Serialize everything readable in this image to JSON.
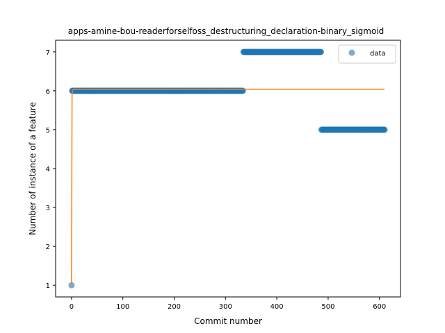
{
  "chart_data": {
    "type": "scatter",
    "title": "apps-amine-bou-readerforselfoss_destructuring_declaration-binary_sigmoid",
    "xlabel": "Commit number",
    "ylabel": "Number of instance of a feature",
    "xlim": [
      -31,
      641
    ],
    "ylim": [
      0.7,
      7.3
    ],
    "xticks": [
      0,
      100,
      200,
      300,
      400,
      500,
      600
    ],
    "yticks": [
      1,
      2,
      3,
      4,
      5,
      6,
      7
    ],
    "legend": {
      "position": "top-right",
      "entries": [
        "data"
      ]
    },
    "colors": {
      "data": "#1f77b4",
      "fit": "#ff7f0e"
    },
    "series": [
      {
        "name": "data",
        "kind": "scatter",
        "segments": [
          {
            "x_start": 0,
            "x_end": 0,
            "y": 1
          },
          {
            "x_start": 1,
            "x_end": 334,
            "y": 6
          },
          {
            "x_start": 335,
            "x_end": 486,
            "y": 7
          },
          {
            "x_start": 487,
            "x_end": 610,
            "y": 5
          }
        ]
      },
      {
        "kind": "line",
        "x": [
          0,
          1,
          2,
          3,
          5,
          610
        ],
        "y": [
          1,
          5.9,
          6.0,
          6.03,
          6.04,
          6.04
        ]
      }
    ]
  }
}
